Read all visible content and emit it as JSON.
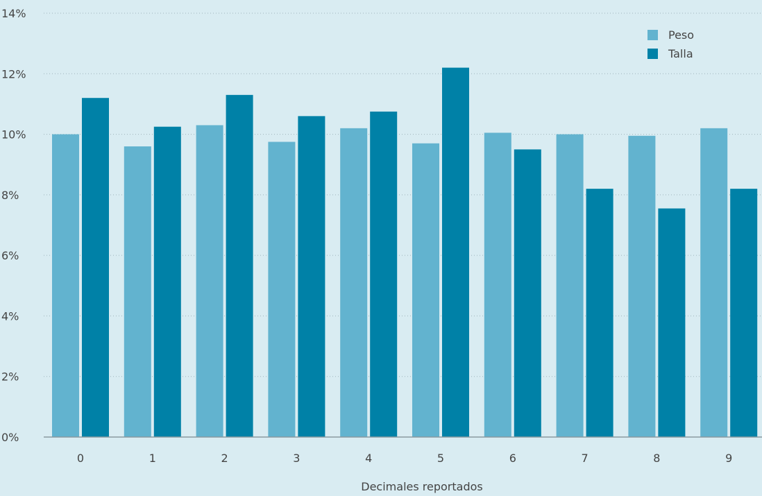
{
  "chart_data": {
    "type": "bar",
    "xlabel": "Decimales reportados",
    "ylabel": "",
    "ylim": [
      0,
      14
    ],
    "yticks": [
      0,
      2,
      4,
      6,
      8,
      10,
      12,
      14
    ],
    "ytick_suffix": "%",
    "grid": true,
    "legend_position": "top-right",
    "categories": [
      "0",
      "1",
      "2",
      "3",
      "4",
      "5",
      "6",
      "7",
      "8",
      "9"
    ],
    "series": [
      {
        "name": "Peso",
        "color": "#62b3cf",
        "values": [
          10.0,
          9.6,
          10.3,
          9.75,
          10.2,
          9.7,
          10.05,
          10.0,
          9.95,
          10.2
        ]
      },
      {
        "name": "Talla",
        "color": "#0081a7",
        "values": [
          11.2,
          10.25,
          11.3,
          10.6,
          10.75,
          12.2,
          9.5,
          8.2,
          7.55,
          8.2
        ]
      }
    ]
  }
}
